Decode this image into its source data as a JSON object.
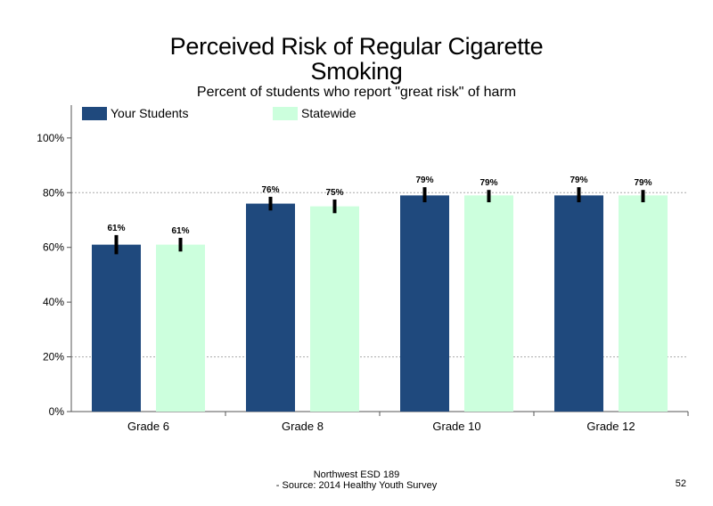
{
  "chart_data": {
    "type": "bar",
    "title_line1": "Perceived Risk of Regular Cigarette",
    "title_line2": "Smoking",
    "subtitle": "Percent of students who report \"great risk\" of harm",
    "categories": [
      "Grade 6",
      "Grade 8",
      "Grade 10",
      "Grade 12"
    ],
    "series": [
      {
        "name": "Your Students",
        "color": "#1f497d",
        "values": [
          61,
          76,
          79,
          79
        ],
        "labels": [
          "61%",
          "76%",
          "79%",
          "79%"
        ],
        "error_low": [
          57.5,
          73.5,
          76.5,
          76.5
        ],
        "error_high": [
          64.5,
          78.5,
          82,
          82
        ]
      },
      {
        "name": "Statewide",
        "color": "#ccffdd",
        "values": [
          61,
          75,
          79,
          79
        ],
        "labels": [
          "61%",
          "75%",
          "79%",
          "79%"
        ],
        "error_low": [
          58.5,
          72.5,
          76.5,
          76.5
        ],
        "error_high": [
          63.5,
          77.5,
          81,
          81
        ]
      }
    ],
    "ylim": [
      0,
      112
    ],
    "yticks": [
      0,
      20,
      40,
      60,
      80,
      100
    ],
    "ytick_labels": [
      "0%",
      "20%",
      "40%",
      "60%",
      "80%",
      "100%"
    ],
    "gridlines": [
      20,
      80
    ],
    "legend_position": "top-left"
  },
  "footer": {
    "line1": "Northwest ESD  189",
    "line2": "- Source: 2014 Healthy  Youth Survey"
  },
  "page_number": "52"
}
